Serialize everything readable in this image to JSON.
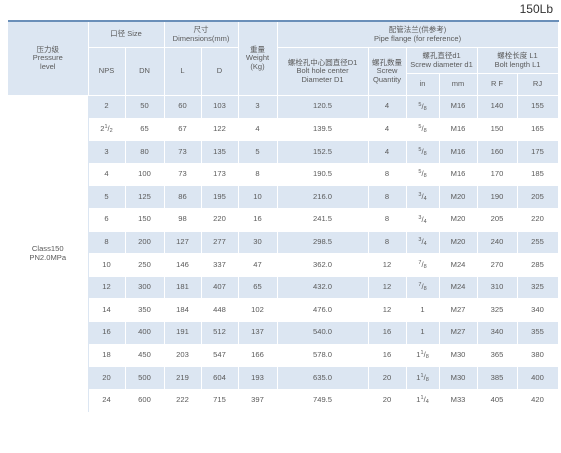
{
  "page_label": "150Lb",
  "headers": {
    "pressure": {
      "zh": "压力级",
      "en1": "Pressure",
      "en2": "level"
    },
    "size": "口径 Size",
    "dimensions": {
      "zh": "尺寸",
      "en": "Dimensions(mm)"
    },
    "weight": {
      "zh": "重量",
      "en1": "Weight",
      "en2": "(Kg)"
    },
    "flange": {
      "zh": "配管法兰(供参考)",
      "en": "Pipe flange (for reference)"
    },
    "bolt_hole": {
      "zh": "螺栓孔中心圆直径D1",
      "en1": "Bolt hole center",
      "en2": "Diameter D1"
    },
    "screw_qty": {
      "zh": "螺孔数量",
      "en1": "Screw",
      "en2": "Quantity"
    },
    "screw_dia": {
      "zh": "螺孔直径d1",
      "en": "Screw diameter d1"
    },
    "bolt_len": {
      "zh": "螺栓长度 L1",
      "en": "Bolt length L1"
    },
    "nps": "NPS",
    "dn": "DN",
    "l": "L",
    "d": "D",
    "in": "in",
    "mm": "mm",
    "rf": "R F",
    "rj": "RJ"
  },
  "pressure_value": {
    "line1": "Class150",
    "line2": "PN2.0MPa"
  },
  "rows": [
    {
      "nps": "2",
      "dn": "50",
      "l": "60",
      "d": "103",
      "w": "3",
      "d1": "120.5",
      "qty": "4",
      "in_w": "",
      "in_n": "5",
      "in_d": "8",
      "mm": "M16",
      "rf": "140",
      "rj": "155"
    },
    {
      "nps_w": "2",
      "nps_n": "1",
      "nps_d": "2",
      "dn": "65",
      "l": "67",
      "d": "122",
      "w": "4",
      "d1": "139.5",
      "qty": "4",
      "in_w": "",
      "in_n": "5",
      "in_d": "8",
      "mm": "M16",
      "rf": "150",
      "rj": "165"
    },
    {
      "nps": "3",
      "dn": "80",
      "l": "73",
      "d": "135",
      "w": "5",
      "d1": "152.5",
      "qty": "4",
      "in_w": "",
      "in_n": "5",
      "in_d": "8",
      "mm": "M16",
      "rf": "160",
      "rj": "175"
    },
    {
      "nps": "4",
      "dn": "100",
      "l": "73",
      "d": "173",
      "w": "8",
      "d1": "190.5",
      "qty": "8",
      "in_w": "",
      "in_n": "5",
      "in_d": "8",
      "mm": "M16",
      "rf": "170",
      "rj": "185"
    },
    {
      "nps": "5",
      "dn": "125",
      "l": "86",
      "d": "195",
      "w": "10",
      "d1": "216.0",
      "qty": "8",
      "in_w": "",
      "in_n": "3",
      "in_d": "4",
      "mm": "M20",
      "rf": "190",
      "rj": "205"
    },
    {
      "nps": "6",
      "dn": "150",
      "l": "98",
      "d": "220",
      "w": "16",
      "d1": "241.5",
      "qty": "8",
      "in_w": "",
      "in_n": "3",
      "in_d": "4",
      "mm": "M20",
      "rf": "205",
      "rj": "220"
    },
    {
      "nps": "8",
      "dn": "200",
      "l": "127",
      "d": "277",
      "w": "30",
      "d1": "298.5",
      "qty": "8",
      "in_w": "",
      "in_n": "3",
      "in_d": "4",
      "mm": "M20",
      "rf": "240",
      "rj": "255"
    },
    {
      "nps": "10",
      "dn": "250",
      "l": "146",
      "d": "337",
      "w": "47",
      "d1": "362.0",
      "qty": "12",
      "in_w": "",
      "in_n": "7",
      "in_d": "8",
      "mm": "M24",
      "rf": "270",
      "rj": "285"
    },
    {
      "nps": "12",
      "dn": "300",
      "l": "181",
      "d": "407",
      "w": "65",
      "d1": "432.0",
      "qty": "12",
      "in_w": "",
      "in_n": "7",
      "in_d": "8",
      "mm": "M24",
      "rf": "310",
      "rj": "325"
    },
    {
      "nps": "14",
      "dn": "350",
      "l": "184",
      "d": "448",
      "w": "102",
      "d1": "476.0",
      "qty": "12",
      "in_w": "1",
      "in_n": "",
      "in_d": "",
      "mm": "M27",
      "rf": "325",
      "rj": "340"
    },
    {
      "nps": "16",
      "dn": "400",
      "l": "191",
      "d": "512",
      "w": "137",
      "d1": "540.0",
      "qty": "16",
      "in_w": "1",
      "in_n": "",
      "in_d": "",
      "mm": "M27",
      "rf": "340",
      "rj": "355"
    },
    {
      "nps": "18",
      "dn": "450",
      "l": "203",
      "d": "547",
      "w": "166",
      "d1": "578.0",
      "qty": "16",
      "in_w": "1",
      "in_n": "1",
      "in_d": "8",
      "mm": "M30",
      "rf": "365",
      "rj": "380"
    },
    {
      "nps": "20",
      "dn": "500",
      "l": "219",
      "d": "604",
      "w": "193",
      "d1": "635.0",
      "qty": "20",
      "in_w": "1",
      "in_n": "1",
      "in_d": "8",
      "mm": "M30",
      "rf": "385",
      "rj": "400"
    },
    {
      "nps": "24",
      "dn": "600",
      "l": "222",
      "d": "715",
      "w": "397",
      "d1": "749.5",
      "qty": "20",
      "in_w": "1",
      "in_n": "1",
      "in_d": "4",
      "mm": "M33",
      "rf": "405",
      "rj": "420"
    }
  ]
}
